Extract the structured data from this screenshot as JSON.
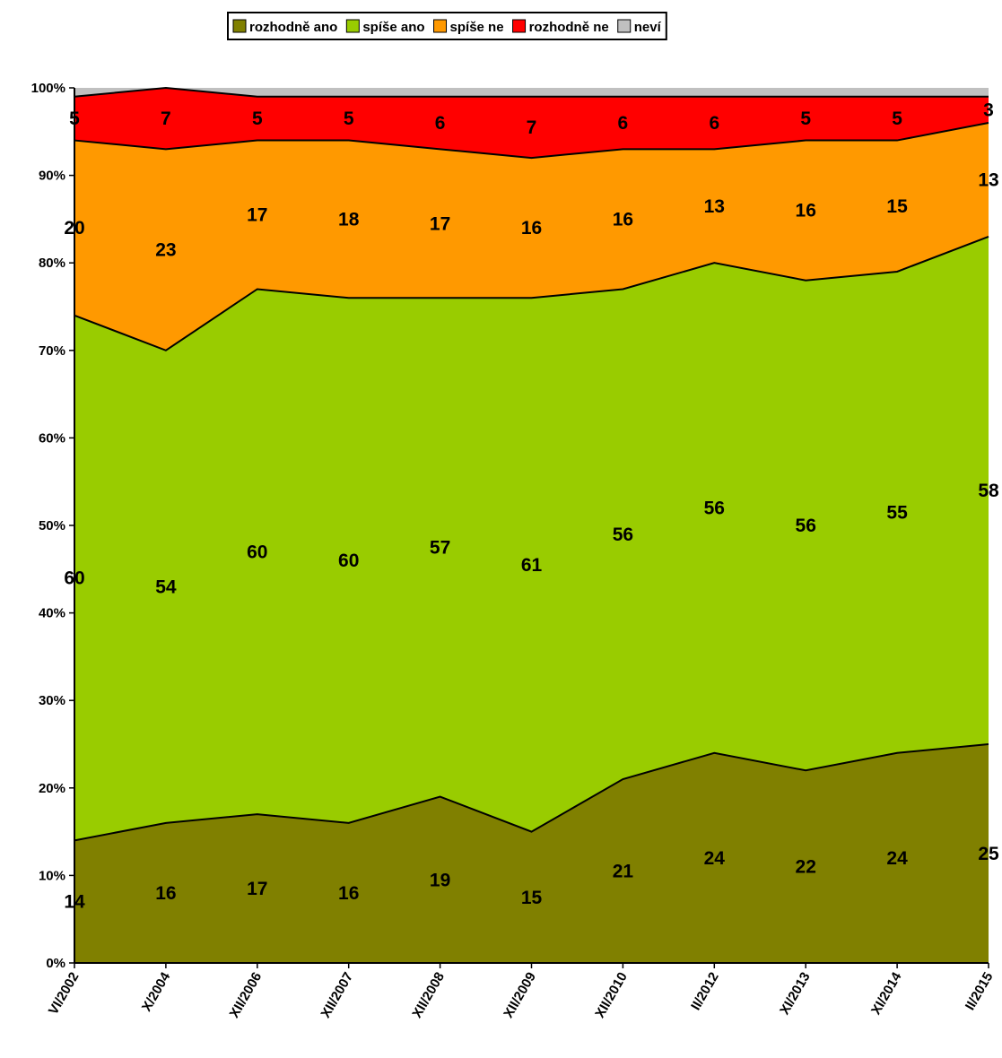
{
  "chart_data": {
    "type": "area",
    "stacked": true,
    "percent": true,
    "categories": [
      "VI/2002",
      "X/2004",
      "XII/2006",
      "XII/2007",
      "XII/2008",
      "XII/2009",
      "XII/2010",
      "II/2012",
      "XI/2013",
      "XI/2014",
      "II/2015"
    ],
    "series": [
      {
        "name": "rozhodně ano",
        "color": "#808000",
        "values": [
          14,
          16,
          17,
          16,
          19,
          15,
          21,
          24,
          22,
          24,
          25
        ]
      },
      {
        "name": "spíše ano",
        "color": "#99CC00",
        "values": [
          60,
          54,
          60,
          60,
          57,
          61,
          56,
          56,
          56,
          55,
          58
        ]
      },
      {
        "name": "spíše ne",
        "color": "#FF9900",
        "values": [
          20,
          23,
          17,
          18,
          17,
          16,
          16,
          13,
          16,
          15,
          13
        ]
      },
      {
        "name": "rozhodně ne",
        "color": "#FF0000",
        "values": [
          5,
          7,
          5,
          5,
          6,
          7,
          6,
          6,
          5,
          5,
          3
        ]
      },
      {
        "name": "neví",
        "color": "#C0C0C0",
        "values": [
          1,
          0,
          1,
          1,
          1,
          1,
          1,
          1,
          1,
          1,
          1
        ]
      }
    ],
    "labeled_series": [
      "rozhodně ano",
      "spíše ano",
      "spíše ne",
      "rozhodně ne"
    ],
    "y_ticks": [
      "0%",
      "10%",
      "20%",
      "30%",
      "40%",
      "50%",
      "60%",
      "70%",
      "80%",
      "90%",
      "100%"
    ],
    "ylim": [
      0,
      100
    ],
    "grid": false,
    "legend_position": "top"
  }
}
